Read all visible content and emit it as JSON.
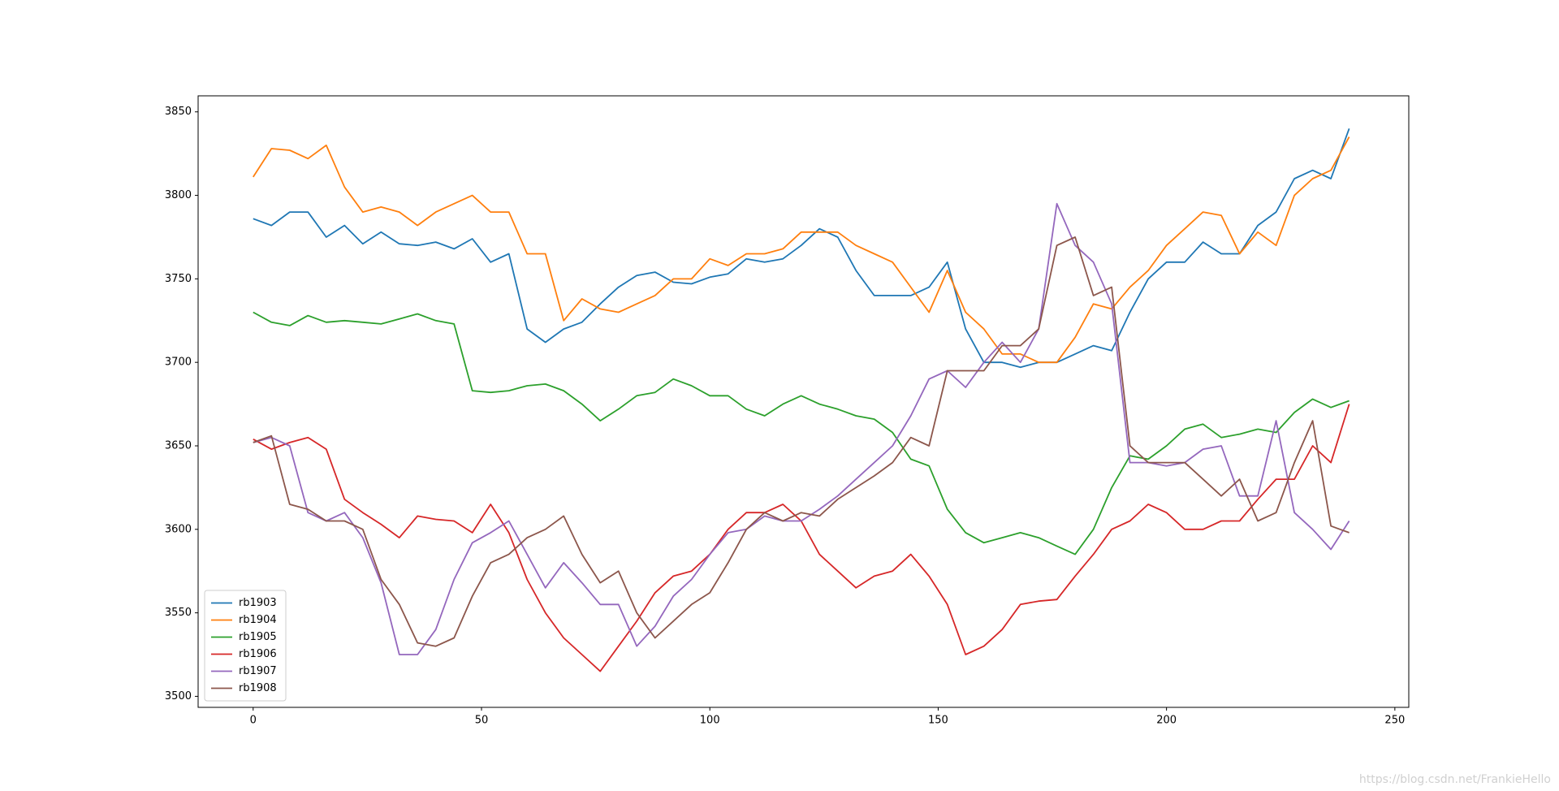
{
  "chart_data": {
    "type": "line",
    "x": [
      0,
      4,
      8,
      12,
      16,
      20,
      24,
      28,
      32,
      36,
      40,
      44,
      48,
      52,
      56,
      60,
      64,
      68,
      72,
      76,
      80,
      84,
      88,
      92,
      96,
      100,
      104,
      108,
      112,
      116,
      120,
      124,
      128,
      132,
      136,
      140,
      144,
      148,
      152,
      156,
      160,
      164,
      168,
      172,
      176,
      180,
      184,
      188,
      192,
      196,
      200,
      204,
      208,
      212,
      216,
      220,
      224,
      228,
      232,
      236,
      240
    ],
    "series": [
      {
        "name": "rb1903",
        "color": "#1f77b4",
        "values": [
          3786,
          3782,
          3790,
          3790,
          3775,
          3782,
          3771,
          3778,
          3771,
          3770,
          3772,
          3768,
          3774,
          3760,
          3765,
          3720,
          3712,
          3720,
          3724,
          3735,
          3745,
          3752,
          3754,
          3748,
          3747,
          3751,
          3753,
          3762,
          3760,
          3762,
          3770,
          3780,
          3775,
          3755,
          3740,
          3740,
          3740,
          3745,
          3760,
          3720,
          3700,
          3700,
          3697,
          3700,
          3700,
          3705,
          3710,
          3707,
          3730,
          3750,
          3760,
          3760,
          3772,
          3765,
          3765,
          3782,
          3790,
          3810,
          3815,
          3810,
          3840
        ]
      },
      {
        "name": "rb1904",
        "color": "#ff7f0e",
        "values": [
          3811,
          3828,
          3827,
          3822,
          3830,
          3805,
          3790,
          3793,
          3790,
          3782,
          3790,
          3795,
          3800,
          3790,
          3790,
          3765,
          3765,
          3725,
          3738,
          3732,
          3730,
          3735,
          3740,
          3750,
          3750,
          3762,
          3758,
          3765,
          3765,
          3768,
          3778,
          3778,
          3778,
          3770,
          3765,
          3760,
          3745,
          3730,
          3755,
          3730,
          3720,
          3705,
          3705,
          3700,
          3700,
          3715,
          3735,
          3732,
          3745,
          3755,
          3770,
          3780,
          3790,
          3788,
          3765,
          3778,
          3770,
          3800,
          3810,
          3815,
          3835
        ]
      },
      {
        "name": "rb1905",
        "color": "#2ca02c",
        "values": [
          3730,
          3724,
          3722,
          3728,
          3724,
          3725,
          3724,
          3723,
          3726,
          3729,
          3725,
          3723,
          3683,
          3682,
          3683,
          3686,
          3687,
          3683,
          3675,
          3665,
          3672,
          3680,
          3682,
          3690,
          3686,
          3680,
          3680,
          3672,
          3668,
          3675,
          3680,
          3675,
          3672,
          3668,
          3666,
          3658,
          3642,
          3638,
          3612,
          3598,
          3592,
          3595,
          3598,
          3595,
          3590,
          3585,
          3600,
          3625,
          3644,
          3642,
          3650,
          3660,
          3663,
          3655,
          3657,
          3660,
          3658,
          3670,
          3678,
          3673,
          3677
        ]
      },
      {
        "name": "rb1906",
        "color": "#d62728",
        "values": [
          3654,
          3648,
          3652,
          3655,
          3648,
          3618,
          3610,
          3603,
          3595,
          3608,
          3606,
          3605,
          3598,
          3615,
          3598,
          3570,
          3550,
          3535,
          3525,
          3515,
          3530,
          3545,
          3562,
          3572,
          3575,
          3585,
          3600,
          3610,
          3610,
          3615,
          3605,
          3585,
          3575,
          3565,
          3572,
          3575,
          3585,
          3572,
          3555,
          3525,
          3530,
          3540,
          3555,
          3557,
          3558,
          3572,
          3585,
          3600,
          3605,
          3615,
          3610,
          3600,
          3600,
          3605,
          3605,
          3618,
          3630,
          3630,
          3650,
          3640,
          3675
        ]
      },
      {
        "name": "rb1907",
        "color": "#9467bd",
        "values": [
          3652,
          3655,
          3650,
          3610,
          3605,
          3610,
          3595,
          3568,
          3525,
          3525,
          3540,
          3570,
          3592,
          3598,
          3605,
          3585,
          3565,
          3580,
          3568,
          3555,
          3555,
          3530,
          3542,
          3560,
          3570,
          3585,
          3598,
          3600,
          3608,
          3605,
          3605,
          3612,
          3620,
          3630,
          3640,
          3650,
          3668,
          3690,
          3695,
          3685,
          3700,
          3712,
          3700,
          3720,
          3795,
          3770,
          3760,
          3735,
          3640,
          3640,
          3638,
          3640,
          3648,
          3650,
          3620,
          3620,
          3665,
          3610,
          3600,
          3588,
          3605
        ]
      },
      {
        "name": "rb1908",
        "color": "#8c564b",
        "values": [
          3652,
          3656,
          3615,
          3612,
          3605,
          3605,
          3600,
          3570,
          3555,
          3532,
          3530,
          3535,
          3560,
          3580,
          3585,
          3595,
          3600,
          3608,
          3585,
          3568,
          3575,
          3550,
          3535,
          3545,
          3555,
          3562,
          3580,
          3600,
          3610,
          3605,
          3610,
          3608,
          3618,
          3625,
          3632,
          3640,
          3655,
          3650,
          3695,
          3695,
          3695,
          3710,
          3710,
          3720,
          3770,
          3775,
          3740,
          3745,
          3650,
          3640,
          3640,
          3640,
          3630,
          3620,
          3630,
          3605,
          3610,
          3640,
          3665,
          3602,
          3598
        ]
      }
    ],
    "xlim": [
      -12.05,
      253.05
    ],
    "xticks": [
      0,
      50,
      100,
      150,
      200,
      250
    ],
    "ylim": [
      3493.4,
      3859.6
    ],
    "yticks": [
      3500,
      3550,
      3600,
      3650,
      3700,
      3750,
      3800,
      3850
    ],
    "legend": "lower left",
    "watermark": "https://blog.csdn.net/FrankieHello"
  }
}
